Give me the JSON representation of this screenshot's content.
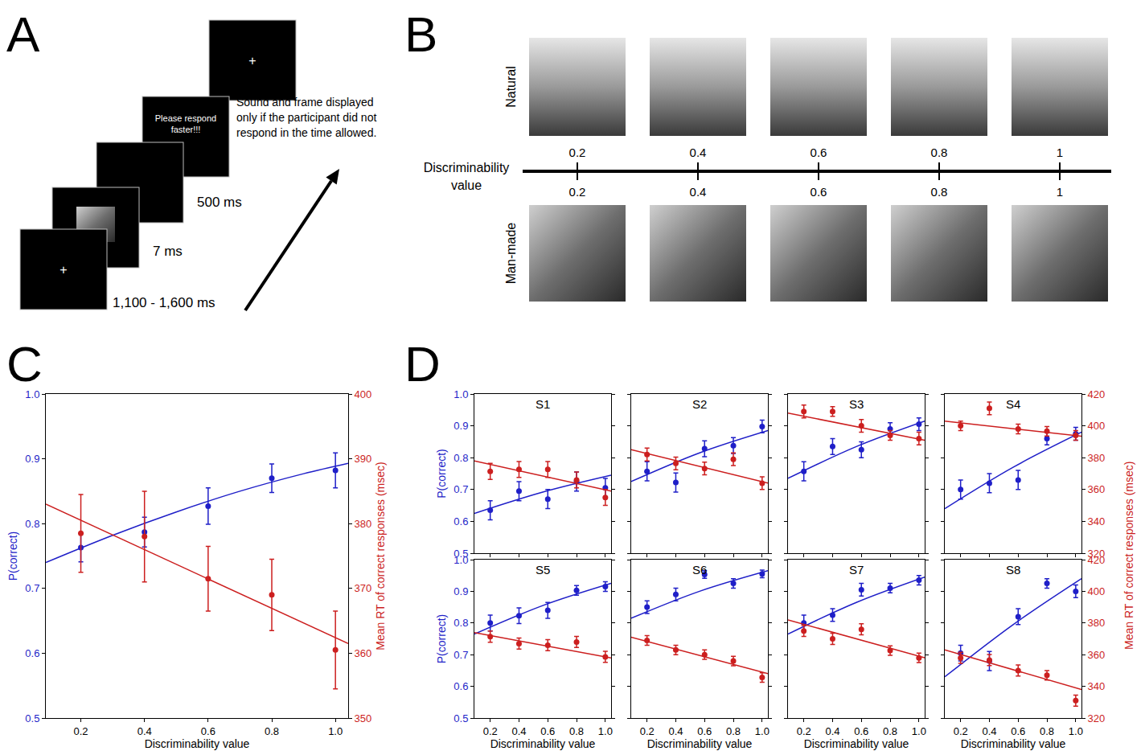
{
  "panel_letters": [
    "A",
    "B",
    "C",
    "D"
  ],
  "diagram_A": {
    "fixation": "+",
    "durations": [
      "1,100 - 1,600 ms",
      "7 ms",
      "500 ms"
    ],
    "prompt": "Please respond faster!!!",
    "note": "Sound and frame displayed only if the participant did not respond in the time allowed."
  },
  "diagram_B": {
    "rows": [
      "Natural",
      "Man-made"
    ],
    "axis_label": "Discriminability value",
    "ticks": [
      0.2,
      0.4,
      0.6,
      0.8,
      1
    ]
  },
  "chart_data": [
    {
      "type": "scatter",
      "xlabel": "Discriminability value",
      "ylabel": "P(correct)",
      "y2label": "Mean RT of correct responses (msec)",
      "xlim": [
        0.09,
        1.04
      ],
      "xticks": [
        0.2,
        0.4,
        0.6,
        0.8,
        {
          "value": 1,
          "label": "1.0"
        }
      ],
      "ylim": [
        0.5,
        1
      ],
      "yticks": [
        0.5,
        0.6,
        0.7,
        0.8,
        0.9,
        {
          "value": 1,
          "label": "1.0"
        }
      ],
      "y2lim": [
        350,
        400
      ],
      "y2ticks": [
        350,
        360,
        370,
        380,
        390,
        400
      ],
      "grid": false,
      "series": [
        {
          "color": "#1f1fc8",
          "marker": "circle",
          "line_style": "solid",
          "x": [
            0.2,
            0.4,
            0.6,
            0.8,
            1.0
          ],
          "values": [
            0.763,
            0.787,
            0.827,
            0.87,
            0.882
          ],
          "error": [
            0.022,
            0.023,
            0.028,
            0.022,
            0.027
          ],
          "fit_x": [
            0.09,
            0.3,
            0.5,
            0.7,
            0.9,
            1.04
          ],
          "fit": [
            0.74,
            0.782,
            0.818,
            0.85,
            0.877,
            0.893
          ]
        },
        {
          "axis": "y2",
          "color": "#cc1f1f",
          "marker": "circle",
          "line_style": "solid",
          "x": [
            0.2,
            0.4,
            0.6,
            0.8,
            1.0
          ],
          "values": [
            378.5,
            378,
            371.5,
            369,
            360.5
          ],
          "error": [
            6,
            7,
            5,
            5.5,
            6
          ],
          "fit_x": [
            0.09,
            1.04
          ],
          "fit": [
            383,
            361.5
          ]
        }
      ]
    },
    {
      "type": "scatter",
      "xlabel": "Discriminability value",
      "ylabel": "P(correct)",
      "y2label": "Mean RT of correct responses (msec)",
      "xlim": [
        0.09,
        1.04
      ],
      "xticks": [
        0.2,
        0.4,
        0.6,
        0.8,
        {
          "value": 1,
          "label": "1.0"
        }
      ],
      "ylim": [
        0.5,
        1
      ],
      "yticks": [
        0.5,
        0.6,
        0.7,
        0.8,
        0.9,
        {
          "value": 1,
          "label": "1.0"
        }
      ],
      "y2lim": [
        320,
        420
      ],
      "y2ticks": [
        320,
        340,
        360,
        380,
        400,
        420
      ],
      "grid": false,
      "subplots": [
        {
          "title": "S1",
          "series": [
            {
              "color": "#1f1fc8",
              "marker": "circle",
              "line_style": "solid",
              "x": [
                0.2,
                0.4,
                0.6,
                0.8,
                1.0
              ],
              "values": [
                0.635,
                0.695,
                0.67,
                0.725,
                0.705
              ],
              "error": [
                0.03,
                0.03,
                0.03,
                0.03,
                0.03
              ],
              "fit_x": [
                0.09,
                0.565,
                1.04
              ],
              "fit": [
                0.625,
                0.692,
                0.745
              ]
            },
            {
              "axis": "y2",
              "color": "#cc1f1f",
              "marker": "circle",
              "line_style": "solid",
              "x": [
                0.2,
                0.4,
                0.6,
                0.8,
                1.0
              ],
              "values": [
                371.4,
                372.6,
                372.6,
                366,
                355
              ],
              "error": [
                5,
                5,
                5,
                5,
                5
              ],
              "fit_x": [
                0.09,
                1.04
              ],
              "fit": [
                378,
                359
              ]
            }
          ]
        },
        {
          "title": "S2",
          "series": [
            {
              "color": "#1f1fc8",
              "marker": "circle",
              "line_style": "solid",
              "x": [
                0.2,
                0.4,
                0.6,
                0.8,
                1.0
              ],
              "values": [
                0.757,
                0.722,
                0.828,
                0.838,
                0.898
              ],
              "error": [
                0.03,
                0.03,
                0.025,
                0.025,
                0.02
              ],
              "fit_x": [
                0.09,
                0.565,
                1.04
              ],
              "fit": [
                0.725,
                0.815,
                0.885
              ]
            },
            {
              "axis": "y2",
              "color": "#cc1f1f",
              "marker": "circle",
              "line_style": "solid",
              "x": [
                0.2,
                0.4,
                0.6,
                0.8,
                1.0
              ],
              "values": [
                382,
                376.4,
                373.2,
                379,
                364
              ],
              "error": [
                4,
                4,
                4,
                4,
                4
              ],
              "fit_x": [
                0.09,
                1.04
              ],
              "fit": [
                385,
                364
              ]
            }
          ]
        },
        {
          "title": "S3",
          "series": [
            {
              "color": "#1f1fc8",
              "marker": "circle",
              "line_style": "solid",
              "x": [
                0.2,
                0.4,
                0.6,
                0.8,
                1.0
              ],
              "values": [
                0.757,
                0.835,
                0.825,
                0.89,
                0.905
              ],
              "error": [
                0.03,
                0.025,
                0.025,
                0.02,
                0.02
              ],
              "fit_x": [
                0.09,
                0.565,
                1.04
              ],
              "fit": [
                0.735,
                0.835,
                0.915
              ]
            },
            {
              "axis": "y2",
              "color": "#cc1f1f",
              "marker": "circle",
              "line_style": "solid",
              "x": [
                0.2,
                0.4,
                0.6,
                0.8,
                1.0
              ],
              "values": [
                409,
                409,
                400,
                394,
                392
              ],
              "error": [
                4,
                3,
                4,
                3,
                4
              ],
              "fit_x": [
                0.09,
                1.04
              ],
              "fit": [
                408,
                391
              ]
            }
          ]
        },
        {
          "title": "S4",
          "series": [
            {
              "color": "#1f1fc8",
              "marker": "circle",
              "line_style": "solid",
              "x": [
                0.2,
                0.4,
                0.6,
                0.8,
                1.0
              ],
              "values": [
                0.7,
                0.72,
                0.73,
                0.86,
                0.875
              ],
              "error": [
                0.03,
                0.03,
                0.03,
                0.02,
                0.02
              ],
              "fit_x": [
                0.09,
                0.565,
                1.04
              ],
              "fit": [
                0.64,
                0.77,
                0.88
              ]
            },
            {
              "axis": "y2",
              "color": "#cc1f1f",
              "marker": "circle",
              "line_style": "solid",
              "x": [
                0.2,
                0.4,
                0.6,
                0.8,
                1.0
              ],
              "values": [
                400,
                411,
                398,
                396.6,
                394
              ],
              "error": [
                3,
                4,
                3,
                3,
                3
              ],
              "fit_x": [
                0.09,
                1.04
              ],
              "fit": [
                403,
                393.5
              ]
            }
          ]
        },
        {
          "title": "S5",
          "series": [
            {
              "color": "#1f1fc8",
              "marker": "circle",
              "line_style": "solid",
              "x": [
                0.2,
                0.4,
                0.6,
                0.8,
                1.0
              ],
              "values": [
                0.8,
                0.823,
                0.84,
                0.903,
                0.915
              ],
              "error": [
                0.025,
                0.025,
                0.025,
                0.015,
                0.015
              ],
              "fit_x": [
                0.09,
                0.565,
                1.04
              ],
              "fit": [
                0.765,
                0.855,
                0.925
              ]
            },
            {
              "axis": "y2",
              "color": "#cc1f1f",
              "marker": "circle",
              "line_style": "solid",
              "x": [
                0.2,
                0.4,
                0.6,
                0.8,
                1.0
              ],
              "values": [
                371.4,
                367,
                366,
                368,
                358.6
              ],
              "error": [
                3.5,
                3.5,
                3.5,
                3.5,
                3.5
              ],
              "fit_x": [
                0.09,
                1.04
              ],
              "fit": [
                374,
                358
              ]
            }
          ]
        },
        {
          "title": "S6",
          "series": [
            {
              "color": "#1f1fc8",
              "marker": "circle",
              "line_style": "solid",
              "x": [
                0.2,
                0.4,
                0.6,
                0.8,
                1.0
              ],
              "values": [
                0.85,
                0.89,
                0.953,
                0.925,
                0.955
              ],
              "error": [
                0.02,
                0.02,
                0.012,
                0.015,
                0.012
              ],
              "fit_x": [
                0.09,
                0.565,
                1.04
              ],
              "fit": [
                0.815,
                0.9,
                0.965
              ]
            },
            {
              "axis": "y2",
              "color": "#cc1f1f",
              "marker": "circle",
              "line_style": "solid",
              "x": [
                0.2,
                0.4,
                0.6,
                0.8,
                1.0
              ],
              "values": [
                369,
                363,
                360,
                356,
                345.6
              ],
              "error": [
                3,
                3,
                3,
                3,
                3
              ],
              "fit_x": [
                0.09,
                1.04
              ],
              "fit": [
                371,
                348
              ]
            }
          ]
        },
        {
          "title": "S7",
          "series": [
            {
              "color": "#1f1fc8",
              "marker": "circle",
              "line_style": "solid",
              "x": [
                0.2,
                0.4,
                0.6,
                0.8,
                1.0
              ],
              "values": [
                0.8,
                0.825,
                0.905,
                0.91,
                0.935
              ],
              "error": [
                0.025,
                0.02,
                0.02,
                0.015,
                0.015
              ],
              "fit_x": [
                0.09,
                0.565,
                1.04
              ],
              "fit": [
                0.765,
                0.865,
                0.945
              ]
            },
            {
              "axis": "y2",
              "color": "#cc1f1f",
              "marker": "circle",
              "line_style": "solid",
              "x": [
                0.2,
                0.4,
                0.6,
                0.8,
                1.0
              ],
              "values": [
                375,
                370,
                376,
                362.6,
                358
              ],
              "error": [
                3.5,
                3.5,
                3.5,
                3,
                3
              ],
              "fit_x": [
                0.09,
                1.04
              ],
              "fit": [
                382,
                358
              ]
            }
          ]
        },
        {
          "title": "S8",
          "series": [
            {
              "color": "#1f1fc8",
              "marker": "circle",
              "line_style": "solid",
              "x": [
                0.2,
                0.4,
                0.6,
                0.8,
                1.0
              ],
              "values": [
                0.705,
                0.68,
                0.82,
                0.925,
                0.9
              ],
              "error": [
                0.025,
                0.03,
                0.025,
                0.015,
                0.02
              ],
              "fit_x": [
                0.09,
                0.565,
                1.04
              ],
              "fit": [
                0.63,
                0.795,
                0.94
              ]
            },
            {
              "axis": "y2",
              "color": "#cc1f1f",
              "marker": "circle",
              "line_style": "solid",
              "x": [
                0.2,
                0.4,
                0.6,
                0.8,
                1.0
              ],
              "values": [
                358,
                356.6,
                350,
                347,
                331
              ],
              "error": [
                3.5,
                3.5,
                3.5,
                3,
                3.5
              ],
              "fit_x": [
                0.09,
                1.04
              ],
              "fit": [
                363,
                338
              ]
            }
          ]
        }
      ]
    }
  ]
}
